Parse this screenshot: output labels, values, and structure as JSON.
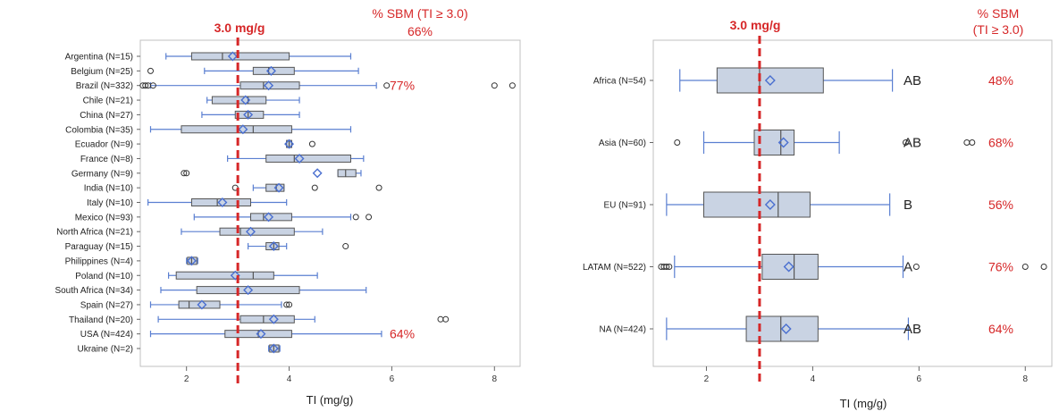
{
  "colors": {
    "box_fill": "#c9d3e3",
    "box_stroke": "#555555",
    "whisker": "#5a7fd1",
    "mean": "#4a6fd0",
    "outlier": "#333333",
    "ref_line": "#d62728",
    "frame": "#c0c0c0"
  },
  "chart_data": [
    {
      "type": "boxplot",
      "orientation": "horizontal",
      "xlabel": "TI (mg/g)",
      "xlim": [
        1.1,
        8.5
      ],
      "xticks": [
        "2",
        "4",
        "6",
        "8"
      ],
      "reference_line": {
        "value": 3.0,
        "label": "3.0 mg/g"
      },
      "header": {
        "line1": "% SBM (TI ≥ 3.0)",
        "line2": "66%"
      },
      "categories": [
        "Argentina (N=15)",
        "Belgium (N=25)",
        "Brazil (N=332)",
        "Chile (N=21)",
        "China (N=27)",
        "Colombia (N=35)",
        "Ecuador (N=9)",
        "France (N=8)",
        "Germany (N=9)",
        "India (N=10)",
        "Italy (N=10)",
        "Mexico (N=93)",
        "North Africa (N=21)",
        "Paraguay (N=15)",
        "Philippines (N=4)",
        "Poland (N=10)",
        "South Africa (N=34)",
        "Spain (N=27)",
        "Thailand (N=20)",
        "USA (N=424)",
        "Ukraine (N=2)"
      ],
      "boxes": [
        {
          "wl": 1.6,
          "q1": 2.1,
          "med": 2.7,
          "q3": 4.0,
          "wh": 5.2,
          "mean": 2.9,
          "outliers": []
        },
        {
          "wl": 2.35,
          "q1": 3.3,
          "med": 3.6,
          "q3": 4.1,
          "wh": 5.35,
          "mean": 3.65,
          "outliers": [
            1.3
          ]
        },
        {
          "wl": 1.3,
          "q1": 3.05,
          "med": 3.5,
          "q3": 4.2,
          "wh": 5.7,
          "mean": 3.6,
          "outliers": [
            1.15,
            1.2,
            1.25,
            1.35,
            5.9,
            8.0,
            8.35
          ]
        },
        {
          "wl": 2.4,
          "q1": 2.5,
          "med": 3.2,
          "q3": 3.55,
          "wh": 4.2,
          "mean": 3.15,
          "outliers": []
        },
        {
          "wl": 2.3,
          "q1": 2.95,
          "med": 3.2,
          "q3": 3.5,
          "wh": 4.2,
          "mean": 3.2,
          "outliers": []
        },
        {
          "wl": 1.3,
          "q1": 1.9,
          "med": 3.3,
          "q3": 4.05,
          "wh": 5.2,
          "mean": 3.1,
          "outliers": []
        },
        {
          "wl": 3.95,
          "q1": 3.95,
          "med": 4.0,
          "q3": 4.05,
          "wh": 4.05,
          "mean": 4.0,
          "outliers": [
            4.45
          ]
        },
        {
          "wl": 2.8,
          "q1": 3.55,
          "med": 4.1,
          "q3": 5.2,
          "wh": 5.45,
          "mean": 4.2,
          "outliers": []
        },
        {
          "wl": 4.95,
          "q1": 4.95,
          "med": 5.1,
          "q3": 5.3,
          "wh": 5.4,
          "mean": 4.55,
          "outliers": [
            1.95,
            2.0
          ]
        },
        {
          "wl": 3.3,
          "q1": 3.55,
          "med": 3.75,
          "q3": 3.9,
          "wh": 3.9,
          "mean": 3.8,
          "outliers": [
            2.95,
            4.5,
            5.75
          ]
        },
        {
          "wl": 1.25,
          "q1": 2.1,
          "med": 2.6,
          "q3": 3.25,
          "wh": 3.95,
          "mean": 2.7,
          "outliers": []
        },
        {
          "wl": 2.15,
          "q1": 3.25,
          "med": 3.5,
          "q3": 4.05,
          "wh": 5.2,
          "mean": 3.6,
          "outliers": [
            5.3,
            5.55
          ]
        },
        {
          "wl": 1.9,
          "q1": 2.65,
          "med": 3.05,
          "q3": 4.1,
          "wh": 4.65,
          "mean": 3.25,
          "outliers": []
        },
        {
          "wl": 3.2,
          "q1": 3.55,
          "med": 3.7,
          "q3": 3.8,
          "wh": 3.95,
          "mean": 3.7,
          "outliers": [
            5.1
          ]
        },
        {
          "wl": 2.0,
          "q1": 2.02,
          "med": 2.1,
          "q3": 2.2,
          "wh": 2.22,
          "mean": 2.1,
          "outliers": []
        },
        {
          "wl": 1.65,
          "q1": 1.8,
          "med": 3.3,
          "q3": 3.7,
          "wh": 4.55,
          "mean": 2.95,
          "outliers": []
        },
        {
          "wl": 1.5,
          "q1": 2.2,
          "med": 3.0,
          "q3": 4.2,
          "wh": 5.5,
          "mean": 3.2,
          "outliers": []
        },
        {
          "wl": 1.3,
          "q1": 1.85,
          "med": 2.05,
          "q3": 2.65,
          "wh": 3.85,
          "mean": 2.3,
          "outliers": [
            3.95,
            4.0
          ]
        },
        {
          "wl": 1.45,
          "q1": 3.05,
          "med": 3.5,
          "q3": 4.1,
          "wh": 4.5,
          "mean": 3.7,
          "outliers": [
            6.95,
            7.05
          ]
        },
        {
          "wl": 1.3,
          "q1": 2.75,
          "med": 3.4,
          "q3": 4.05,
          "wh": 5.8,
          "mean": 3.45,
          "outliers": []
        },
        {
          "wl": 3.6,
          "q1": 3.62,
          "med": 3.7,
          "q3": 3.8,
          "wh": 3.82,
          "mean": 3.7,
          "outliers": []
        }
      ],
      "annotations": [
        {
          "category": "Brazil (N=332)",
          "text": "77%"
        },
        {
          "category": "USA (N=424)",
          "text": "64%"
        }
      ]
    },
    {
      "type": "boxplot",
      "orientation": "horizontal",
      "xlabel": "TI (mg/g)",
      "xlim": [
        1.0,
        8.5
      ],
      "xticks": [
        "2",
        "4",
        "6",
        "8"
      ],
      "reference_line": {
        "value": 3.0,
        "label": "3.0 mg/g"
      },
      "header": {
        "line1": "% SBM",
        "line2": "(TI ≥ 3.0)"
      },
      "categories": [
        "Africa (N=54)",
        "Asia (N=60)",
        "EU (N=91)",
        "LATAM (N=522)",
        "NA (N=424)"
      ],
      "boxes": [
        {
          "wl": 1.5,
          "q1": 2.2,
          "med": 3.0,
          "q3": 4.2,
          "wh": 5.5,
          "mean": 3.2,
          "outliers": [],
          "group": "AB",
          "pct": "48%"
        },
        {
          "wl": 1.95,
          "q1": 2.9,
          "med": 3.4,
          "q3": 3.65,
          "wh": 4.5,
          "mean": 3.45,
          "outliers": [
            1.45,
            5.75,
            6.9,
            7.0
          ],
          "group": "AB",
          "pct": "68%"
        },
        {
          "wl": 1.25,
          "q1": 1.95,
          "med": 3.35,
          "q3": 3.95,
          "wh": 5.45,
          "mean": 3.2,
          "outliers": [],
          "group": "B",
          "pct": "56%"
        },
        {
          "wl": 1.4,
          "q1": 3.05,
          "med": 3.65,
          "q3": 4.1,
          "wh": 5.7,
          "mean": 3.55,
          "outliers": [
            1.15,
            1.2,
            1.25,
            1.3,
            5.95,
            8.0,
            8.35
          ],
          "group": "A",
          "pct": "76%"
        },
        {
          "wl": 1.25,
          "q1": 2.75,
          "med": 3.4,
          "q3": 4.1,
          "wh": 5.8,
          "mean": 3.5,
          "outliers": [],
          "group": "AB",
          "pct": "64%"
        }
      ]
    }
  ]
}
